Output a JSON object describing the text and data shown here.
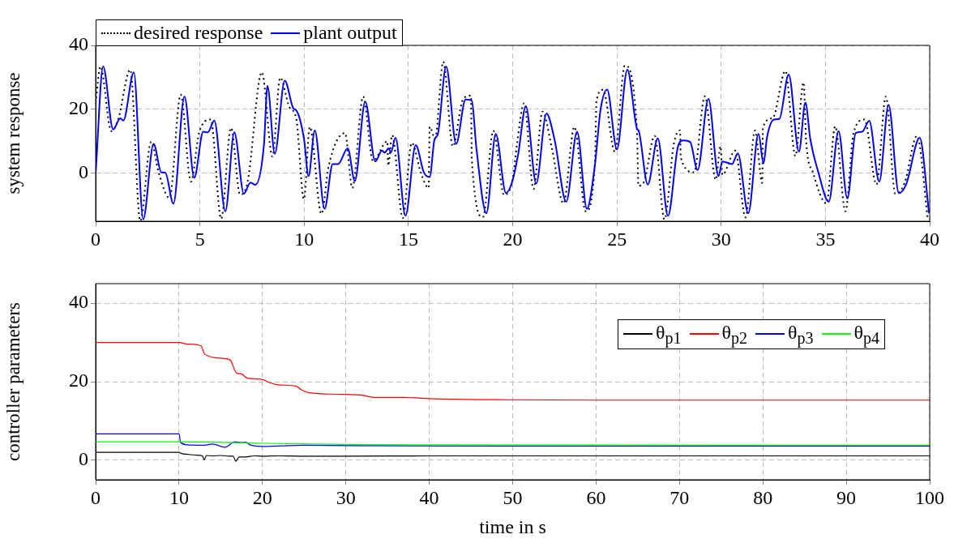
{
  "chart_data": [
    {
      "type": "line",
      "ylabel": "system response",
      "xlim": [
        0,
        40
      ],
      "ylim": [
        -15,
        40
      ],
      "xticks": [
        0,
        5,
        10,
        15,
        20,
        25,
        30,
        35,
        40
      ],
      "yticks": [
        0,
        20,
        40
      ],
      "grid": true,
      "legend": "top left",
      "marker": "none",
      "series": [
        {
          "name": "desired response",
          "color": "#000000",
          "line_style": "dotted",
          "x": [
            0,
            0.23,
            0.75,
            1.08,
            1.66,
            2.14,
            2.66,
            3.02,
            3.54,
            4.08,
            4.57,
            4.96,
            5.52,
            6.02,
            6.49,
            6.93,
            7.29,
            7.97,
            8.48,
            8.85,
            9.3,
            9.62,
            9.99,
            10.27,
            10.83,
            11.18,
            11.96,
            12.31,
            12.83,
            13.3,
            13.99,
            14.03,
            14.22,
            14.73,
            15.16,
            15.61,
            15.97,
            16.02,
            16.28,
            16.67,
            17.13,
            17.61,
            18.0,
            18.04,
            18.58,
            19.07,
            19.59,
            20.0,
            20.2,
            20.55,
            21.0,
            21.43,
            21.88,
            22.44,
            22.96,
            23.5,
            23.95,
            24.02,
            24.34,
            24.9,
            25.38,
            25.96,
            26.03,
            26.3,
            26.81,
            27.28,
            27.73,
            28.03,
            28.06,
            28.7,
            29.22,
            29.74,
            29.97,
            30.06,
            30.67,
            31.17,
            31.62,
            31.97,
            32.0,
            32.46,
            33.08,
            33.56,
            33.95,
            34.08,
            34.4,
            35.05,
            35.47,
            35.96,
            36.35,
            36.87,
            37.45,
            37.9,
            38.35,
            38.8,
            39.39,
            39.91
          ],
          "values": [
            22,
            33.4,
            13.2,
            16.8,
            32.4,
            -14.9,
            9.8,
            0.3,
            -7.7,
            24.6,
            -2.6,
            12.6,
            16.8,
            -14.2,
            14.2,
            -6.7,
            -2.6,
            31.6,
            5.2,
            29.9,
            20.6,
            17.2,
            -8.1,
            14.5,
            -12.7,
            2.4,
            12.6,
            -4.6,
            24.0,
            3.9,
            10.0,
            2.4,
            11.9,
            -14.0,
            9.5,
            -0.1,
            -4.6,
            14.5,
            10.9,
            34.9,
            8.4,
            23.0,
            24.3,
            4.6,
            -13.7,
            13.3,
            -6.8,
            -1.8,
            8.8,
            21.9,
            -4.9,
            19.3,
            7.9,
            -9.4,
            14.5,
            -11.9,
            3.7,
            22.7,
            26.1,
            6.7,
            33.7,
            13.8,
            -3.9,
            -2.6,
            11.7,
            -14.4,
            9.2,
            13.4,
            5.0,
            0.3,
            24.1,
            -2.0,
            8.4,
            -0.5,
            7.1,
            -13.8,
            13.4,
            -3.0,
            14.3,
            17.2,
            32.0,
            5.4,
            28.4,
            9.6,
            0.3,
            -9.4,
            14.7,
            -11.9,
            12.6,
            16.8,
            -3.5,
            24.0,
            -6.4,
            -3.0,
            11.7,
            -14.4
          ]
        },
        {
          "name": "plant output",
          "color": "#0000ff",
          "line_style": "solid",
          "x": [
            0,
            0.36,
            0.84,
            1.18,
            1.33,
            1.83,
            2.28,
            2.78,
            3.15,
            3.34,
            3.73,
            4.26,
            4.73,
            5.16,
            5.38,
            5.69,
            6.22,
            6.65,
            7.11,
            7.42,
            7.66,
            8.07,
            8.24,
            8.59,
            9.07,
            9.49,
            9.62,
            9.99,
            10.21,
            10.51,
            10.98,
            11.37,
            11.63,
            12.09,
            12.43,
            12.93,
            13.41,
            13.73,
            13.86,
            14.06,
            14.16,
            14.38,
            14.86,
            15.35,
            15.74,
            16.02,
            16.25,
            16.41,
            16.81,
            17.29,
            17.74,
            18.04,
            18.26,
            18.74,
            19.19,
            19.68,
            19.98,
            20.27,
            20.63,
            21.13,
            21.62,
            22.01,
            22.57,
            23.09,
            23.56,
            23.95,
            24.21,
            24.53,
            25.0,
            25.5,
            25.96,
            26.05,
            26.48,
            26.96,
            27.45,
            27.93,
            28.19,
            28.51,
            28.87,
            29.39,
            29.87,
            30.06,
            30.52,
            30.8,
            31.3,
            31.79,
            32.03,
            32.2,
            32.53,
            32.79,
            33.24,
            33.73,
            34.04,
            34.27,
            34.66,
            35.16,
            35.63,
            36.05,
            36.45,
            36.76,
            37.1,
            37.58,
            38.03,
            38.52,
            38.87,
            39.52,
            39.97
          ],
          "values": [
            0,
            33.4,
            13.7,
            17.2,
            16.5,
            31.6,
            -14.4,
            9.2,
            0.3,
            0.2,
            -9.5,
            24.0,
            -1.4,
            13.0,
            12.8,
            16.5,
            -11.9,
            12.8,
            -6.4,
            -2.9,
            -3.6,
            8.8,
            27.3,
            6.1,
            29.0,
            20.2,
            19.7,
            10.9,
            -0.9,
            13.4,
            -11.1,
            2.9,
            2.9,
            7.8,
            -2.4,
            22.4,
            3.7,
            7.1,
            6.5,
            7.8,
            6.5,
            11.1,
            -13.3,
            8.8,
            0.3,
            -1.2,
            10.5,
            12.2,
            33.4,
            9.2,
            23.1,
            22.7,
            7.9,
            -12.5,
            12.3,
            -6.2,
            -2.6,
            6.2,
            21.0,
            -3.2,
            18.7,
            10.5,
            -8.9,
            13.0,
            -11.1,
            2.9,
            19.7,
            26.2,
            7.5,
            32.4,
            14.0,
            13.2,
            -3.5,
            10.9,
            -13.3,
            8.4,
            10.3,
            9.8,
            1.0,
            23.3,
            -0.9,
            3.7,
            2.9,
            6.2,
            -12.5,
            12.3,
            3.1,
            11.3,
            16.8,
            17.0,
            30.9,
            6.8,
            22.1,
            10.9,
            0.3,
            -8.9,
            13.2,
            -7.9,
            12.6,
            13.0,
            16.4,
            -2.6,
            21.4,
            -6.2,
            -3.5,
            11.1,
            -12.5
          ]
        }
      ]
    },
    {
      "type": "line",
      "xlabel": "time in s",
      "ylabel": "controller parameters",
      "xlim": [
        0,
        100
      ],
      "ylim": [
        -5,
        45
      ],
      "xticks": [
        0,
        10,
        20,
        30,
        40,
        50,
        60,
        70,
        80,
        90,
        100
      ],
      "yticks": [
        0,
        20,
        40
      ],
      "grid": true,
      "legend": "right",
      "marker": "none",
      "series": [
        {
          "name": "θ$_{p1}$",
          "color": "#000000",
          "line_style": "solid",
          "x": [
            0,
            10,
            10.3,
            11,
            12,
            12.8,
            13,
            13.3,
            14,
            15,
            16,
            16.5,
            16.8,
            17.2,
            18,
            19,
            20,
            22,
            25,
            30,
            40,
            60,
            80,
            100
          ],
          "values": [
            2,
            2,
            1.7,
            1.5,
            1.3,
            1.1,
            0.1,
            1.2,
            1.1,
            1.2,
            1.0,
            1.0,
            -0.3,
            0.8,
            0.8,
            1.1,
            1.0,
            1.1,
            1.0,
            1.0,
            1.1,
            1.1,
            1.1,
            1.1
          ]
        },
        {
          "name": "θ$_{p2}$",
          "color": "#ff0000",
          "line_style": "solid",
          "x": [
            0,
            10,
            11,
            12.6,
            13.1,
            15,
            16.1,
            16.9,
            17.5,
            18.1,
            20.1,
            20.7,
            21.9,
            24,
            24.7,
            25.6,
            29.2,
            32.1,
            33.4,
            37,
            40,
            50,
            60,
            100
          ],
          "values": [
            30,
            30,
            29.6,
            29.2,
            27.0,
            26.0,
            25.6,
            22.2,
            22.0,
            21.0,
            20.5,
            19.9,
            19.2,
            18.9,
            17.9,
            17.2,
            16.8,
            16.5,
            16.0,
            16.0,
            15.7,
            15.4,
            15.3,
            15.3
          ]
        },
        {
          "name": "θ$_{p3}$",
          "color": "#0000ff",
          "line_style": "solid",
          "x": [
            0,
            10,
            10.2,
            11,
            13,
            14,
            15.5,
            16.7,
            17.5,
            18,
            18.5,
            20,
            25,
            30,
            50,
            100
          ],
          "values": [
            6.7,
            6.7,
            4.5,
            3.9,
            3.8,
            4.1,
            3.3,
            4.7,
            4.5,
            4.6,
            3.9,
            3.5,
            3.8,
            3.7,
            3.6,
            3.6
          ]
        },
        {
          "name": "θ$_{p4}$",
          "color": "#00ff00",
          "line_style": "solid",
          "x": [
            0,
            10,
            20,
            30,
            40,
            100
          ],
          "values": [
            4.7,
            4.7,
            4.3,
            4.0,
            3.9,
            3.8
          ]
        }
      ]
    }
  ]
}
